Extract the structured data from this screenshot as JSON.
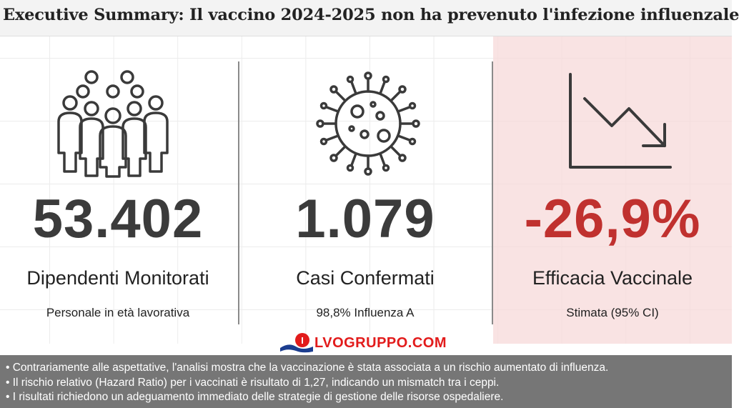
{
  "title": "Executive Summary: Il vaccino 2024-2025 non ha prevenuto l'infezione influenzale",
  "metrics": [
    {
      "icon": "people-group-icon",
      "value": "53.402",
      "label": "Dipendenti Monitorati",
      "sublabel": "Personale in età lavorativa"
    },
    {
      "icon": "virus-icon",
      "value": "1.079",
      "label": "Casi Confermati",
      "sublabel": "98,8% Influenza A"
    },
    {
      "icon": "trending-down-chart-icon",
      "value": "-26,9%",
      "label": "Efficacia Vaccinale",
      "sublabel": "Stimata (95% CI)"
    }
  ],
  "watermark": {
    "text": "LVOGRUPPO.COM",
    "logo_letter": "I"
  },
  "footer": {
    "bullets": [
      "• Contrariamente alle aspettative, l'analisi mostra che la vaccinazione è stata associata a un rischio aumentato di influenza.",
      "• Il rischio relativo (Hazard Ratio) per i vaccinati è risultato di 1,27, indicando un mismatch tra i ceppi.",
      "• I risultati richiedono un adeguamento immediato delle strategie di gestione delle risorse ospedaliere."
    ]
  },
  "colors": {
    "highlight_bg": "#f7dada",
    "negative_value": "#c0312f",
    "footer_bg": "#767676",
    "watermark_red": "#e21b1b"
  }
}
